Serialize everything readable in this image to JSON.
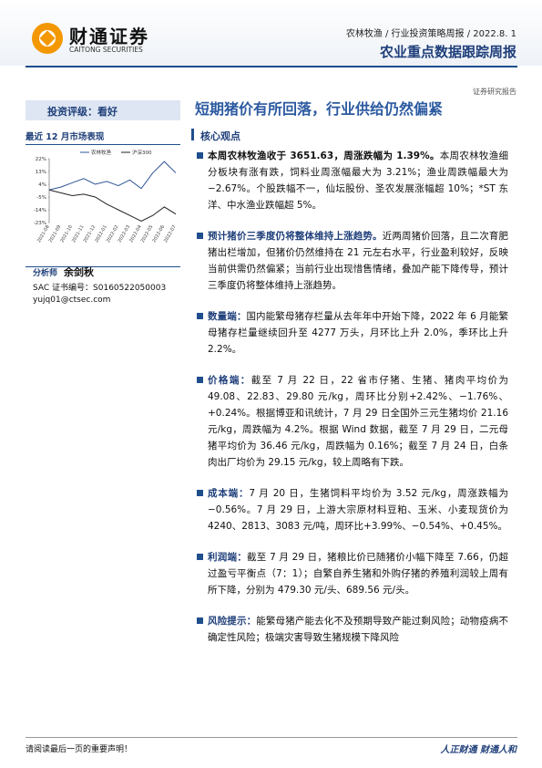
{
  "header": {
    "logo_name": "财通证券",
    "logo_en": "CAITONG SECURITIES",
    "breadcrumb": "农林牧渔 / 行业投资策略周报 / 2022.8. 1",
    "title": "农业重点数据跟踪周报",
    "tag": "证券研究报告"
  },
  "sidebar": {
    "rating": "投资评级：看好",
    "perf_title": "最近 12 月市场表现",
    "analyst_label": "分析师",
    "analyst_name": "余剑秋",
    "sac": "SAC 证书编号：S0160522050003",
    "email": "yujq01@ctsec.com"
  },
  "chart_data": {
    "type": "line",
    "categories": [
      "2021-08",
      "2021-09",
      "2021-10",
      "2021-11",
      "2021-12",
      "2022-01",
      "2022-02",
      "2022-03",
      "2022-04",
      "2022-05",
      "2022-06",
      "2022-07"
    ],
    "series": [
      {
        "name": "农林牧渔",
        "color": "#2f5597",
        "values": [
          0,
          2,
          5,
          8,
          4,
          6,
          3,
          7,
          1,
          12,
          20,
          12
        ]
      },
      {
        "name": "沪深300",
        "color": "#222222",
        "values": [
          0,
          -2,
          -4,
          -3,
          -5,
          -10,
          -14,
          -18,
          -22,
          -18,
          -12,
          -17
        ]
      }
    ],
    "ylim": [
      -23,
      22
    ],
    "yticks": [
      {
        "value": 22,
        "label": "22%"
      },
      {
        "value": 13,
        "label": "13%"
      },
      {
        "value": 4,
        "label": "4%"
      },
      {
        "value": -5,
        "label": "-5%"
      },
      {
        "value": -14,
        "label": "-14%"
      },
      {
        "value": -23,
        "label": "-23%"
      }
    ]
  },
  "main": {
    "title": "短期猪价有所回落，行业供给仍然偏紧",
    "section": "核心观点",
    "points": [
      {
        "lead": "本周农林牧渔收于 3651.63，周涨跌幅为 1.39%。",
        "body": "本周农林牧渔细分板块有涨有跌，饲料业周涨幅最大为 3.21%；渔业周跌幅最大为−2.67%。个股跌幅不一，仙坛股份、圣农发展涨幅超 10%；*ST 东洋、中水渔业跌幅超 5%。"
      },
      {
        "lead": "预计猪价三季度仍将整体维持上涨趋势。",
        "body": "近两周猪价回落，且二次育肥猪出栏增加，但猪价仍然维持在 21 元左右水平，行业盈利较好，反映当前供需仍然偏紧；当前行业出现惜售情绪，叠加产能下降传导，预计三季度仍将整体维持上涨趋势。"
      },
      {
        "lead": "数量端：",
        "body": "国内能繁母猪存栏量从去年年中开始下降，2022 年 6 月能繁母猪存栏量继续回升至 4277 万头，月环比上升 2.0%，季环比上升 2.2%。"
      },
      {
        "lead": "价格端：",
        "body": "截至 7 月 22 日，22 省市仔猪、生猪、猪肉平均价为 49.08、22.83、29.80 元/kg，周环比分别+2.42%、−1.76%、+0.24%。根据博亚和讯统计，7 月 29 日全国外三元生猪均价 21.16 元/kg，周跌幅为 4.2%。根据 Wind 数据，截至 7 月 29 日，二元母猪平均价为 36.46 元/kg，周跌幅为 0.16%；截至 7 月 24 日，白条肉出厂均价为 29.15 元/kg，较上周略有下跌。"
      },
      {
        "lead": "成本端：",
        "body": "7 月 20 日，生猪饲料平均价为 3.52 元/kg，周涨跌幅为−0.56%。7 月 29 日，上游大宗原材料豆粕、玉米、小麦现货价为 4240、2813、3083 元/吨，周环比+3.99%、−0.54%、+0.45%。"
      },
      {
        "lead": "利润端：",
        "body": "截至 7 月 29 日，猪粮比价已随猪价小幅下降至 7.66，仍超过盈亏平衡点（7：1）；自繁自养生猪和外购仔猪的养殖利润较上周有所下降，分别为 479.30 元/头、689.56 元/头。"
      },
      {
        "lead": "风险提示：",
        "body": "能繁母猪产能去化不及预期导致产能过剩风险；动物疫病不确定性风险；极端灾害导致生猪规模下降风险"
      }
    ]
  },
  "footer": {
    "notice": "请阅读最后一页的重要声明！",
    "slogan": "人正财通 财通人和"
  }
}
